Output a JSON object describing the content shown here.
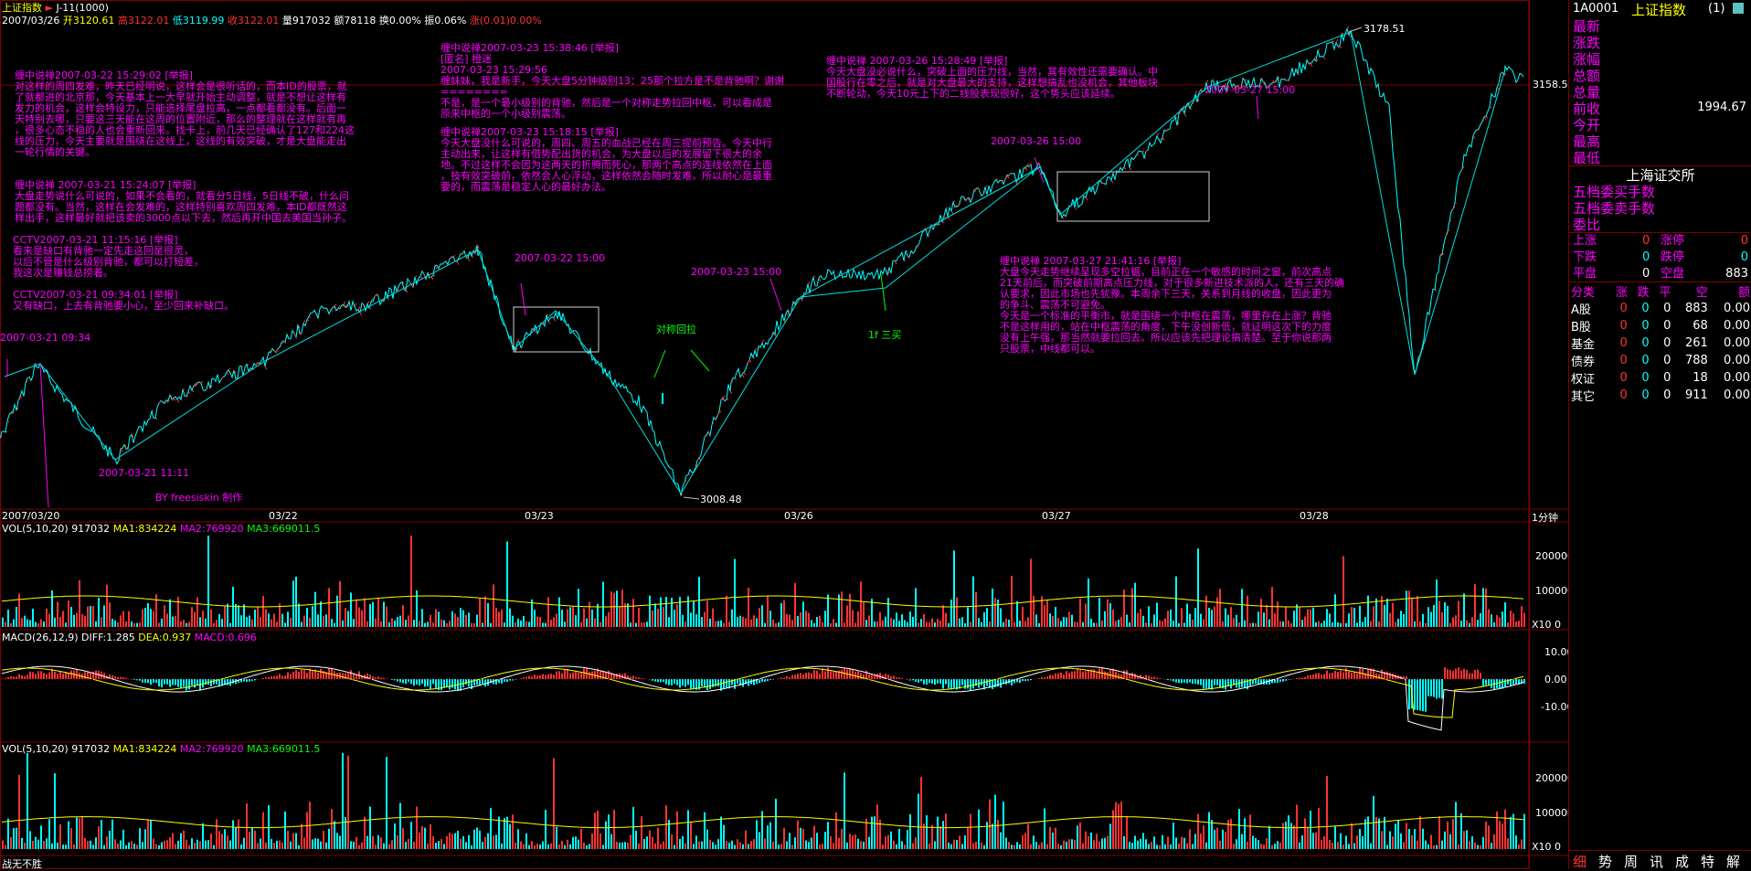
{
  "header": {
    "index_name": "上证指数",
    "period": "J-11(1000)",
    "date": "2007/03/26",
    "open": "开3120.61",
    "high": "高3122.01",
    "low": "低3119.99",
    "close": "收3122.01",
    "volume": "量917032",
    "amount": "额78118",
    "turnover": "换0.00%",
    "amplitude": "振0.06%",
    "change": "涨(0.01)0.00%"
  },
  "price": {
    "high_mark": "3178.51",
    "low_mark": "3008.48",
    "right_value": "3158.5"
  },
  "xaxis": {
    "labels": [
      "2007/03/20",
      "03/22",
      "03/23",
      "03/26",
      "03/27",
      "03/28"
    ],
    "period_label": "1分钟"
  },
  "notes": [
    {
      "text": "缠中说禅2007-03-22 15:29:02 [举报]\n对这样的周四发难，昨天已经明说，这样会是很听话的，而本ID的股票，就\n了就都进的北京那，今天基本上一大早就开始主动调整，就是不想让这样有\n发力的机会，这样会特设力，只能选择尾盘拉高，一点都看都没有。后面一\n天特别去哪，只要这三天能在这周的位置附近，那么的整理就在这样就有再\n，很多心态不稳的人也会重新回来。找卡上，前几天已经确认了127和224这\n线的压力，今天主要就是围绕在这线上，这线的有效突破，才是大盘能走出\n一轮行情的关键。"
    },
    {
      "text": "缠中说禅 2007-03-21 15:24:07 [举报]\n大盘走势说什么可说的，如果不会看的，就看分5日线，5日线不破，什么问\n题都没有。当然，这样在会发难的，这样特别喜欢周四发难，本ID都既然这\n样出手，这样最好就把该卖的3000点以下去，然后再开中国去美国当孙子。"
    },
    {
      "text": "CCTV2007-03-21 11:15:16 [举报]\n看来是缺口有背驰一定先走这回是很灵，\n以后不管是什么级别背驰，都可以打短差，\n我这次是赚钱总捞着。"
    },
    {
      "text": "CCTV2007-03-21 09:34:01 [举报]\n又有缺口，上去有背驰要小心，至少回来补缺口。"
    },
    {
      "text": "缠中说禅2007-03-23 15:38:46 [举报]\n[匿名] 橙迷\n2007-03-23 15:29:56\n缠妹妹，我是新手，今天大盘5分钟级别13：25那个拉方是不是背驰啊？谢谢\n========\n不是，是一个最小级别的背驰，然后是一个对称走势拉回中枢，可以看成是\n原来中枢的一个小级别震荡。"
    },
    {
      "text": "缠中说禅2007-03-23 15:18:15 [举报]\n今天大盘没什么可说的，周四、周五的血战已经在周三提前预告。今天中行\n主动出来，让这样有借势配出货的机会，为大盘以后的发展留下很大的余\n地。不过这样不会因为这两天的折腾而死心，那两个高点的连线依然在上面\n，技有效突破前，依然会人心浮动，这样依然会随时发难，所以耐心是最重\n要的，而震荡是稳定人心的最好办法。"
    },
    {
      "text": "缠中说禅 2007-03-26 15:28:49 [举报]\n今天大盘没必说什么，突破上面的压力线，当然，其有效性还需要确认。中\n国股行在零之后，就是对大盘最大的支持，这样想搞乱也没机会，其他板块\n不断轮动，今天10元上下的二线股表现很好，这个势头应该延续。"
    },
    {
      "text": "缠中说禅 2007-03-27 21:41:16 [举报]\n大盘今天走势继续呈现多空拉锯，目前正在一个敏感的时间之窗，前次高点\n21天前后，而突破前期高点压力线，对于很多新进技术派的人，还有三天的确\n认要求，因此市场也先犹豫。本周余下三天，关系到月线的收盘，因此更为\n的争斗、震荡不可避免。\n今天是一个标准的平衡市，就是围绕一个中枢在震荡，哪里存在上涨？背驰\n不是这样用的，站在中枢震荡的角度，下午没创新低，就证明这次下的力度\n没有上午强，那当然就要拉回去。所以应该先把理论搞清楚。至于你说那两\n只股票，中线都可以。"
    }
  ],
  "annotations": {
    "t1": "2007-03-21 09:34",
    "t2": "2007-03-21 11:11",
    "t3": "2007-03-22 15:00",
    "t4": "2007-03-23 15:00",
    "t5": "2007-03-26 15:00",
    "t6": "2007-03-27 15:00",
    "symmetric": "对称回拉",
    "buy3": "1f 三买",
    "author": "BY freesiskin 制作"
  },
  "vol1": {
    "title": "VOL(5,10,20)",
    "value": "917032",
    "ma1": "MA1:834224",
    "ma2": "MA2:769920",
    "ma3": "MA3:669011.5",
    "ticks": [
      "200000",
      "100000",
      "X10 0"
    ]
  },
  "macd": {
    "title": "MACD(26,12,9)",
    "diff": "DIFF:1.285",
    "dea": "DEA:0.937",
    "macd": "MACD:0.696",
    "ticks": [
      "10.00",
      "0.00",
      "-10.00"
    ]
  },
  "vol2": {
    "title": "VOL(5,10,20)",
    "value": "917032",
    "ma1": "MA1:834224",
    "ma2": "MA2:769920",
    "ma3": "MA3:669011.5",
    "ticks": [
      "200000",
      "100000",
      "X10 0"
    ]
  },
  "footer": {
    "left": "战无不胜"
  },
  "side": {
    "code": "1A0001",
    "name": "上证指数",
    "suffix": "(1)",
    "labels": [
      "最新",
      "涨跌",
      "涨幅",
      "总额",
      "总量",
      "前收",
      "今开",
      "最高",
      "最低"
    ],
    "prev_close": "1994.67",
    "exchange": "上海证交所",
    "labels2": [
      "五档委买手数",
      "五档委卖手数",
      "委比"
    ],
    "stats": [
      {
        "a": "上涨",
        "av": "0",
        "b": "涨停",
        "bv": "0"
      },
      {
        "a": "下跌",
        "av": "0",
        "b": "跌停",
        "bv": "0"
      },
      {
        "a": "平盘",
        "av": "0",
        "b": "空盘",
        "bv": "883"
      }
    ],
    "table_head": [
      "分类",
      "涨",
      "跌",
      "平",
      "空",
      "额"
    ],
    "table": [
      {
        "name": "A股",
        "up": "0",
        "down": "0",
        "flat": "0",
        "empty": "883",
        "amt": "0.00"
      },
      {
        "name": "B股",
        "up": "0",
        "down": "0",
        "flat": "0",
        "empty": "68",
        "amt": "0.00"
      },
      {
        "name": "基金",
        "up": "0",
        "down": "0",
        "flat": "0",
        "empty": "261",
        "amt": "0.00"
      },
      {
        "name": "债券",
        "up": "0",
        "down": "0",
        "flat": "0",
        "empty": "788",
        "amt": "0.00"
      },
      {
        "name": "权证",
        "up": "0",
        "down": "0",
        "flat": "0",
        "empty": "18",
        "amt": "0.00"
      },
      {
        "name": "其它",
        "up": "0",
        "down": "0",
        "flat": "0",
        "empty": "911",
        "amt": "0.00"
      }
    ],
    "tabs": [
      "细",
      "势",
      "周",
      "讯",
      "成",
      "特",
      "解"
    ]
  }
}
